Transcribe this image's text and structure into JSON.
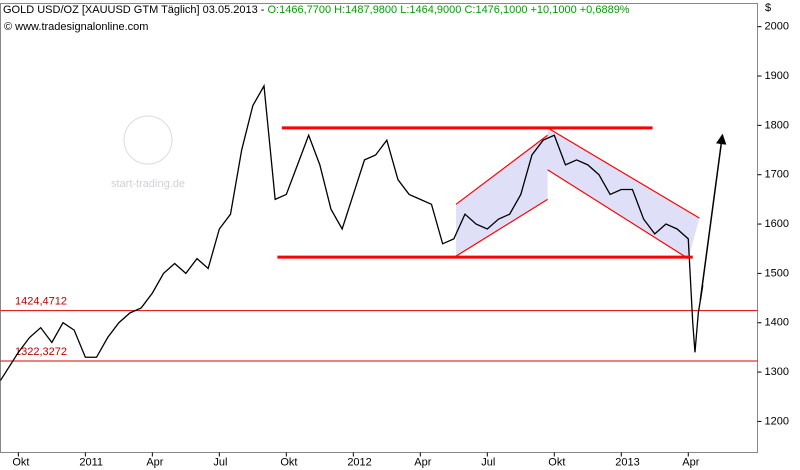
{
  "chart_data": {
    "type": "line",
    "title": "GOLD USD/OZ [XAUUSD GTM  Täglich] 03.05.2013 - ",
    "quote": "O:1466,7700 H:1487,9800 L:1464,9000 C:1476,1000 +10,1000 +0,6889%",
    "subtitle": "© www.tradesignalonline.com",
    "watermark": "start-trading.de",
    "y_axis_label": "$",
    "x": [
      -0.8,
      0,
      0.5,
      1,
      1.5,
      2,
      2.5,
      3,
      3.5,
      4,
      4.5,
      5,
      5.5,
      6,
      6.5,
      7,
      7.5,
      8,
      8.5,
      9,
      9.5,
      10,
      10.5,
      11,
      11.5,
      12,
      12.5,
      13,
      13.5,
      14,
      14.5,
      15,
      15.5,
      16,
      16.5,
      17,
      17.5,
      18,
      18.5,
      19,
      19.5,
      20,
      20.5,
      21,
      21.5,
      22,
      22.5,
      23,
      23.5,
      24,
      24.5,
      25,
      25.5,
      26,
      26.5,
      27,
      27.5,
      28,
      28.5,
      29,
      29.5,
      30,
      30.2,
      30.3,
      30.45,
      30.65
    ],
    "series": [
      {
        "name": "GOLD USD/OZ",
        "color": "#000000",
        "values": [
          1283,
          1340,
          1370,
          1390,
          1360,
          1400,
          1385,
          1330,
          1330,
          1370,
          1400,
          1420,
          1430,
          1460,
          1500,
          1520,
          1500,
          1530,
          1510,
          1590,
          1620,
          1750,
          1840,
          1880,
          1650,
          1660,
          1720,
          1780,
          1720,
          1630,
          1590,
          1660,
          1730,
          1740,
          1770,
          1690,
          1660,
          1650,
          1640,
          1560,
          1570,
          1620,
          1600,
          1590,
          1610,
          1620,
          1660,
          1740,
          1770,
          1780,
          1720,
          1730,
          1720,
          1700,
          1660,
          1670,
          1670,
          1610,
          1580,
          1600,
          1590,
          1570,
          1400,
          1340,
          1420,
          1476
        ]
      }
    ],
    "xlim": [
      -0.8,
      33.1
    ],
    "xticks": [
      {
        "value": 0,
        "label": "Okt"
      },
      {
        "value": 3,
        "label": "2011"
      },
      {
        "value": 6,
        "label": "Apr"
      },
      {
        "value": 9,
        "label": "Jul"
      },
      {
        "value": 12,
        "label": "Okt"
      },
      {
        "value": 15,
        "label": "2012"
      },
      {
        "value": 18,
        "label": "Apr"
      },
      {
        "value": 21,
        "label": "Jul"
      },
      {
        "value": 24,
        "label": "Okt"
      },
      {
        "value": 27,
        "label": "2013"
      },
      {
        "value": 30,
        "label": "Apr"
      }
    ],
    "ylim": [
      1137,
      2047
    ],
    "yticks": [
      1200,
      1300,
      1400,
      1500,
      1600,
      1700,
      1800,
      1900,
      2000
    ],
    "reference_lines": [
      {
        "value": 1424.4712,
        "label": "1424,4712"
      },
      {
        "value": 1322.3272,
        "label": "1322,3272"
      }
    ],
    "trendlines": [
      {
        "x": [
          11.8,
          28.4
        ],
        "y": [
          1795,
          1795
        ],
        "color": "#ff0000"
      },
      {
        "x": [
          11.6,
          30.2
        ],
        "y": [
          1533,
          1533
        ],
        "color": "#ff0000"
      },
      {
        "x": [
          19.6,
          23.7
        ],
        "y": [
          1535,
          1650
        ],
        "color": "#ff0000"
      },
      {
        "x": [
          19.6,
          23.7
        ],
        "y": [
          1640,
          1780
        ],
        "color": "#ff0000"
      },
      {
        "x": [
          23.7,
          30.5
        ],
        "y": [
          1795,
          1612
        ],
        "color": "#ff0000"
      },
      {
        "x": [
          23.7,
          30.0
        ],
        "y": [
          1710,
          1530
        ],
        "color": "#ff0000"
      },
      {
        "x": [
          30.54,
          31.53
        ],
        "y": [
          1446,
          1781
        ],
        "color": "#000000"
      }
    ]
  }
}
